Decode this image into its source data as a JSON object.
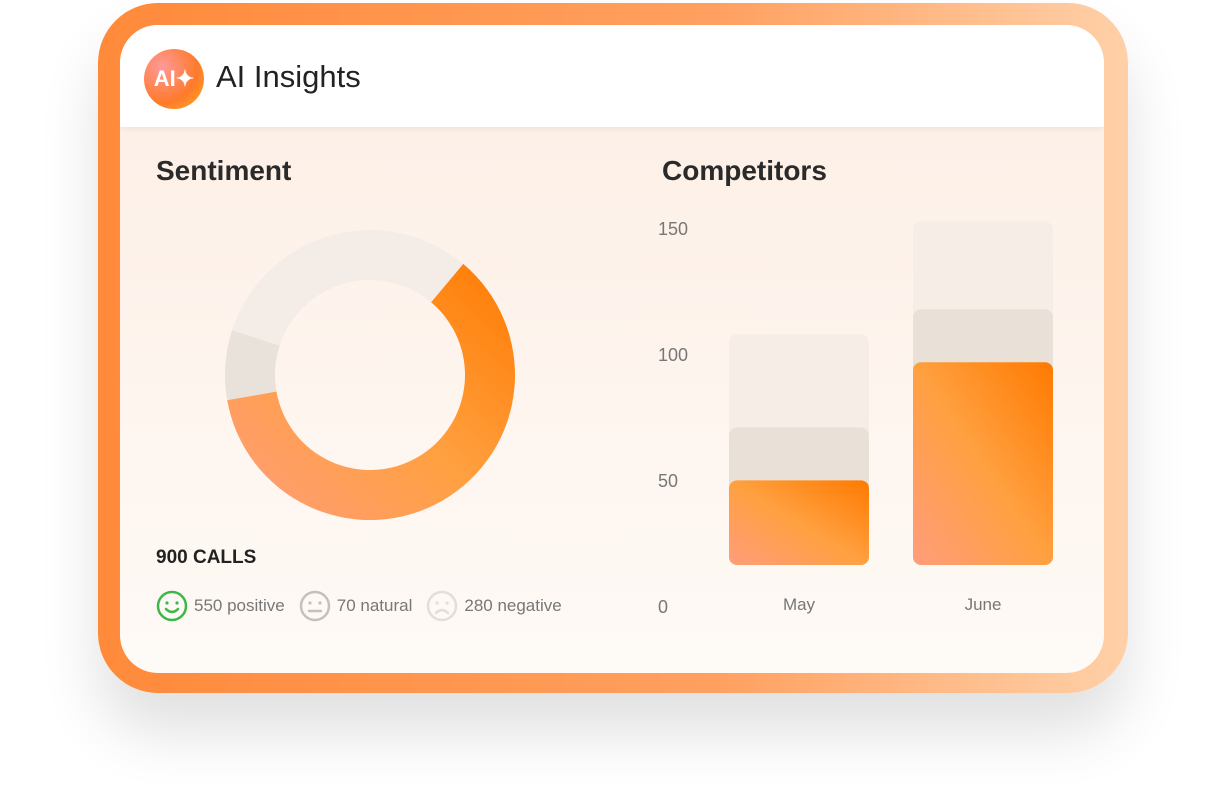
{
  "header": {
    "logo": "AI✦",
    "title": "AI Insights"
  },
  "sentiment": {
    "title": "Sentiment",
    "total": "900 CALLS",
    "legend": [
      {
        "label": "550 positive",
        "icon": "smile-icon",
        "color": "#3cb84a"
      },
      {
        "label": "70 natural",
        "icon": "neutral-face-icon",
        "color": "#c4c0bc"
      },
      {
        "label": "280 negative",
        "icon": "sad-face-icon",
        "color": "#e2dedb"
      }
    ]
  },
  "chart_data": [
    {
      "type": "pie",
      "donut": true,
      "labels": [
        "positive",
        "natural",
        "negative"
      ],
      "values": [
        550,
        70,
        280
      ],
      "colors": [
        "#ff8a2a",
        "#e9e2da",
        "#f4ede7"
      ]
    },
    {
      "type": "bar",
      "stacked": true,
      "title": "Competitors",
      "categories": [
        "May",
        "June"
      ],
      "series": [
        {
          "values": [
            50,
            97
          ],
          "color": "#ff9a55"
        },
        {
          "values": [
            21,
            21
          ],
          "color": "#e9e1d8"
        },
        {
          "values": [
            37,
            35
          ],
          "color": "#f5ede6"
        }
      ],
      "yticks": [
        "0",
        "50",
        "100",
        "150"
      ],
      "ylim": [
        0,
        150
      ]
    }
  ]
}
